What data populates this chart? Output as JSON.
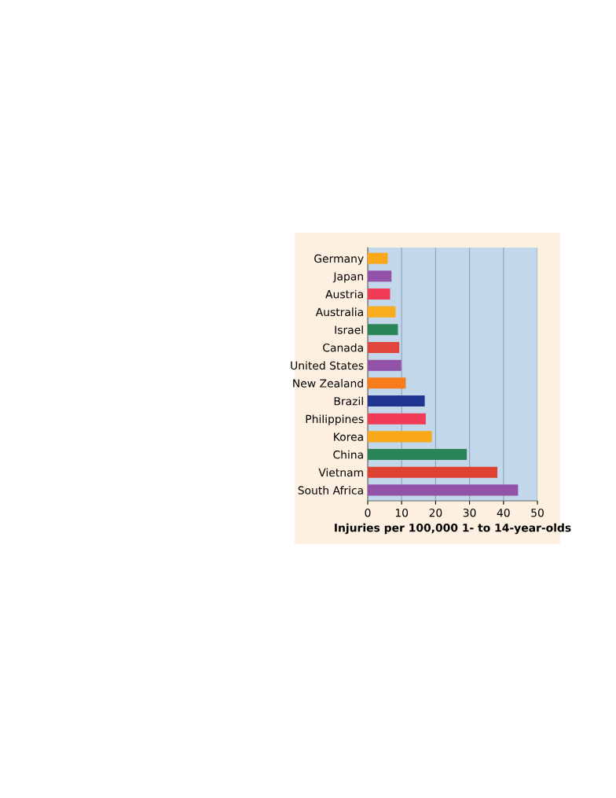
{
  "chart_data": {
    "type": "bar",
    "orientation": "horizontal",
    "xlabel": "Injuries per 100,000 1- to 14-year-olds",
    "categories": [
      "Germany",
      "Japan",
      "Austria",
      "Australia",
      "Israel",
      "Canada",
      "United States",
      "New Zealand",
      "Brazil",
      "Philippines",
      "Korea",
      "China",
      "Vietnam",
      "South Africa"
    ],
    "values": [
      5.9,
      7.0,
      6.6,
      8.2,
      8.9,
      9.3,
      9.9,
      11.2,
      16.8,
      17.1,
      18.9,
      29.2,
      38.2,
      44.3
    ],
    "colors": [
      "#f9a81a",
      "#9152a8",
      "#f23c57",
      "#f9ad1e",
      "#2a8556",
      "#e0473a",
      "#9152a8",
      "#f77c1c",
      "#20358f",
      "#f23c57",
      "#f9a81a",
      "#2a8556",
      "#dd4131",
      "#9152a8"
    ],
    "xlim": [
      0,
      50
    ],
    "xticks": [
      0,
      10,
      20,
      30,
      40,
      50
    ],
    "grid": "x"
  }
}
